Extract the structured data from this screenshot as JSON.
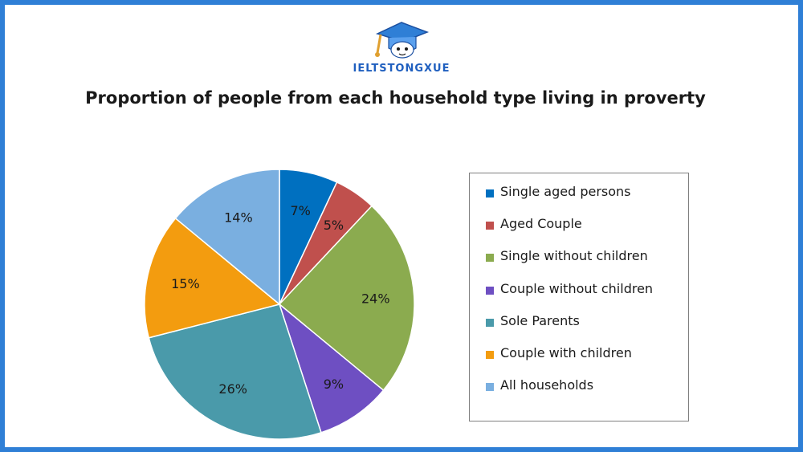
{
  "brand": {
    "name": "IELTSTONGXUE",
    "logo_icon": "graduation-cap-mascot-icon",
    "frame_color": "#2f7fd6"
  },
  "chart_data": {
    "type": "pie",
    "title": "Proportion of people from each household type living in proverty",
    "categories": [
      "Single aged persons",
      "Aged Couple",
      "Single without children",
      "Couple without children",
      "Sole Parents",
      "Couple with children",
      "All households"
    ],
    "values": [
      7,
      5,
      24,
      9,
      26,
      15,
      14
    ],
    "labels": [
      "7%",
      "5%",
      "24%",
      "9%",
      "26%",
      "15%",
      "14%"
    ],
    "colors": [
      "#0070c0",
      "#c0504d",
      "#8bab4f",
      "#6e4fc2",
      "#4a9aaa",
      "#f39c0f",
      "#7aafe0"
    ],
    "start_angle_deg": 0,
    "direction": "clockwise",
    "legend_position": "right"
  }
}
